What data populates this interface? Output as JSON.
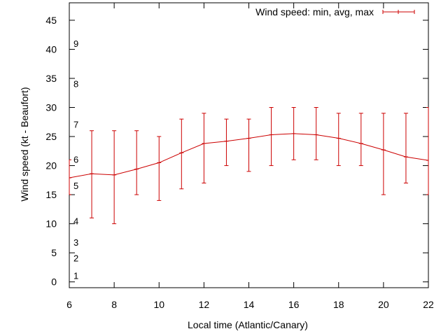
{
  "chart_data": {
    "type": "line",
    "title": "",
    "xlabel": "Local time (Atlantic/Canary)",
    "ylabel": "Wind speed (kt - Beaufort)",
    "xlim": [
      6,
      22
    ],
    "ylim": [
      -1,
      48
    ],
    "xticks": [
      6,
      8,
      10,
      12,
      14,
      16,
      18,
      20,
      22
    ],
    "yticks": [
      0,
      5,
      10,
      15,
      20,
      25,
      30,
      35,
      40,
      45
    ],
    "grid": false,
    "legend": {
      "label": "Wind speed: min, avg, max",
      "position": "top-right"
    },
    "series_color": "#cc0000",
    "series": [
      {
        "name": "Wind speed: min, avg, max",
        "x": [
          6,
          7,
          8,
          9,
          10,
          11,
          12,
          13,
          14,
          15,
          16,
          17,
          18,
          19,
          20,
          21,
          22
        ],
        "avg": [
          17.9,
          18.6,
          18.4,
          19.4,
          20.5,
          22.2,
          23.8,
          24.2,
          24.7,
          25.3,
          25.5,
          25.3,
          24.7,
          23.8,
          22.7,
          21.5,
          20.9
        ],
        "min": [
          15,
          11,
          10,
          15,
          14,
          16,
          17,
          20,
          19,
          20,
          21,
          21,
          20,
          20,
          15,
          17,
          15
        ],
        "max": [
          21,
          26,
          26,
          26,
          25,
          28,
          29,
          28,
          28,
          30,
          30,
          30,
          29,
          29,
          29,
          29,
          30
        ]
      }
    ],
    "beaufort_scale": {
      "labels": [
        "1",
        "2",
        "3",
        "4",
        "5",
        "6",
        "7",
        "8",
        "9"
      ],
      "values": [
        1.1,
        4.1,
        6.8,
        10.5,
        16.6,
        21.1,
        27.1,
        34.1,
        41
      ]
    }
  }
}
